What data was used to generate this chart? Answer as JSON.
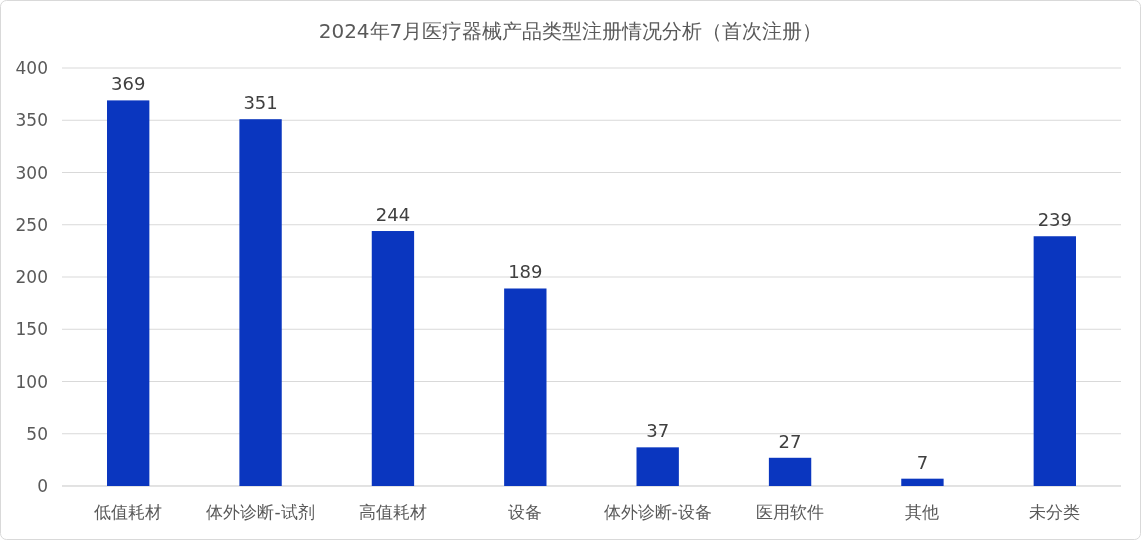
{
  "chart_data": {
    "type": "bar",
    "title": "2024年7月医疗器械产品类型注册情况分析（首次注册）",
    "categories": [
      "低值耗材",
      "体外诊断-试剂",
      "高值耗材",
      "设备",
      "体外诊断-设备",
      "医用软件",
      "其他",
      "未分类"
    ],
    "values": [
      369,
      351,
      244,
      189,
      37,
      27,
      7,
      239
    ],
    "color": "#0a36bf",
    "ylim": [
      0,
      400
    ],
    "yticks": [
      0,
      50,
      100,
      150,
      200,
      250,
      300,
      350,
      400
    ],
    "grid": "y",
    "data_labels": true
  }
}
